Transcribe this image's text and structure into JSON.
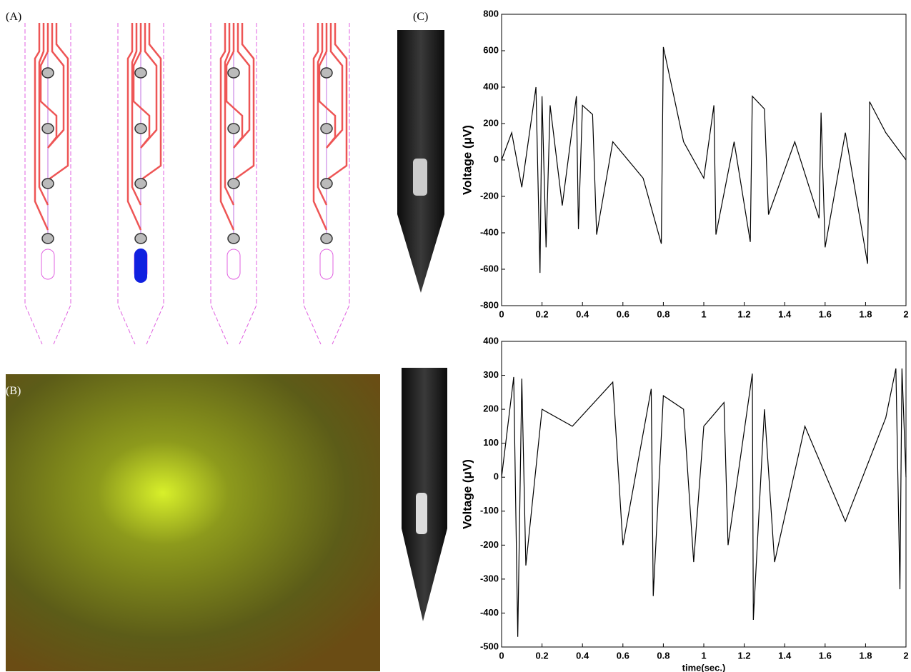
{
  "panels": {
    "labels": [
      "(A)",
      "(B)",
      "(C)"
    ]
  },
  "chart_data": [
    {
      "type": "line",
      "ylabel": "Voltage (μV)",
      "color": "#000000",
      "x": [
        0,
        0.05,
        0.1,
        0.17,
        0.19,
        0.2,
        0.22,
        0.24,
        0.3,
        0.37,
        0.38,
        0.4,
        0.45,
        0.47,
        0.55,
        0.7,
        0.79,
        0.8,
        0.9,
        1.0,
        1.05,
        1.06,
        1.15,
        1.23,
        1.24,
        1.3,
        1.32,
        1.45,
        1.57,
        1.58,
        1.6,
        1.7,
        1.81,
        1.82,
        1.9,
        2
      ],
      "values": [
        0,
        150,
        -150,
        400,
        -620,
        350,
        -480,
        300,
        -250,
        350,
        -380,
        300,
        250,
        -410,
        100,
        -100,
        -460,
        620,
        100,
        -100,
        300,
        -410,
        100,
        -450,
        350,
        280,
        -300,
        100,
        -320,
        260,
        -480,
        150,
        -570,
        320,
        150,
        0
      ],
      "xlim": [
        0,
        2
      ],
      "xticks": [
        0,
        0.2,
        0.4,
        0.6,
        0.8,
        1,
        1.2,
        1.4,
        1.6,
        1.8,
        2
      ],
      "ylim": [
        -800,
        800
      ],
      "yticks": [
        -800,
        -600,
        -400,
        -200,
        0,
        200,
        400,
        600,
        800
      ]
    },
    {
      "type": "line",
      "ylabel": "Voltage (μV)",
      "xlabel": "time(sec.)",
      "color": "#000000",
      "x": [
        0,
        0.06,
        0.08,
        0.1,
        0.12,
        0.2,
        0.35,
        0.55,
        0.6,
        0.74,
        0.75,
        0.8,
        0.9,
        0.95,
        1.0,
        1.1,
        1.12,
        1.24,
        1.245,
        1.3,
        1.35,
        1.5,
        1.7,
        1.9,
        1.95,
        1.97,
        1.98,
        2
      ],
      "values": [
        0,
        295,
        -470,
        290,
        -260,
        200,
        150,
        280,
        -200,
        260,
        -350,
        240,
        200,
        -250,
        150,
        220,
        -200,
        305,
        -420,
        200,
        -250,
        150,
        -130,
        175,
        320,
        -330,
        320,
        0
      ],
      "xlim": [
        0,
        2
      ],
      "xticks": [
        0,
        0.2,
        0.4,
        0.6,
        0.8,
        1,
        1.2,
        1.4,
        1.6,
        1.8,
        2
      ],
      "ylim": [
        -500,
        400
      ],
      "yticks": [
        -500,
        -400,
        -300,
        -200,
        -100,
        0,
        100,
        200,
        300,
        400
      ]
    }
  ]
}
